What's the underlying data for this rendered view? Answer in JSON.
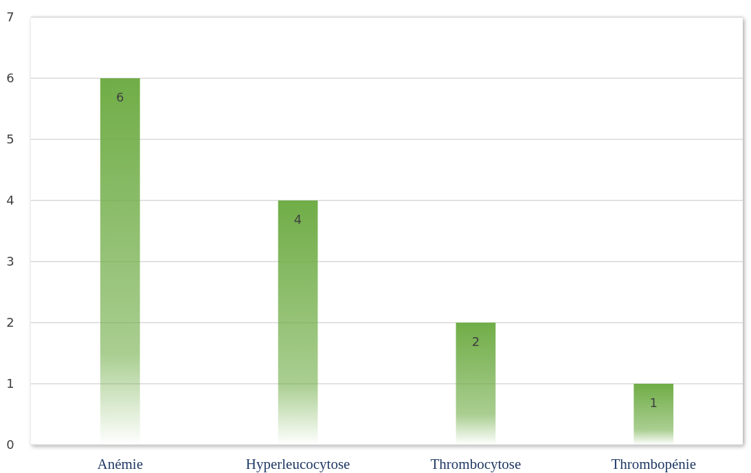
{
  "chart_data": {
    "type": "bar",
    "categories": [
      "Anémie",
      "Hyperleucocytose",
      "Thrombocytose",
      "Thrombopénie"
    ],
    "values": [
      6,
      4,
      2,
      1
    ],
    "color": "#70ad47",
    "ylim": [
      0,
      7
    ],
    "yticks": [
      0,
      1,
      2,
      3,
      4,
      5,
      6,
      7
    ],
    "grid": "y",
    "data_labels": true
  }
}
